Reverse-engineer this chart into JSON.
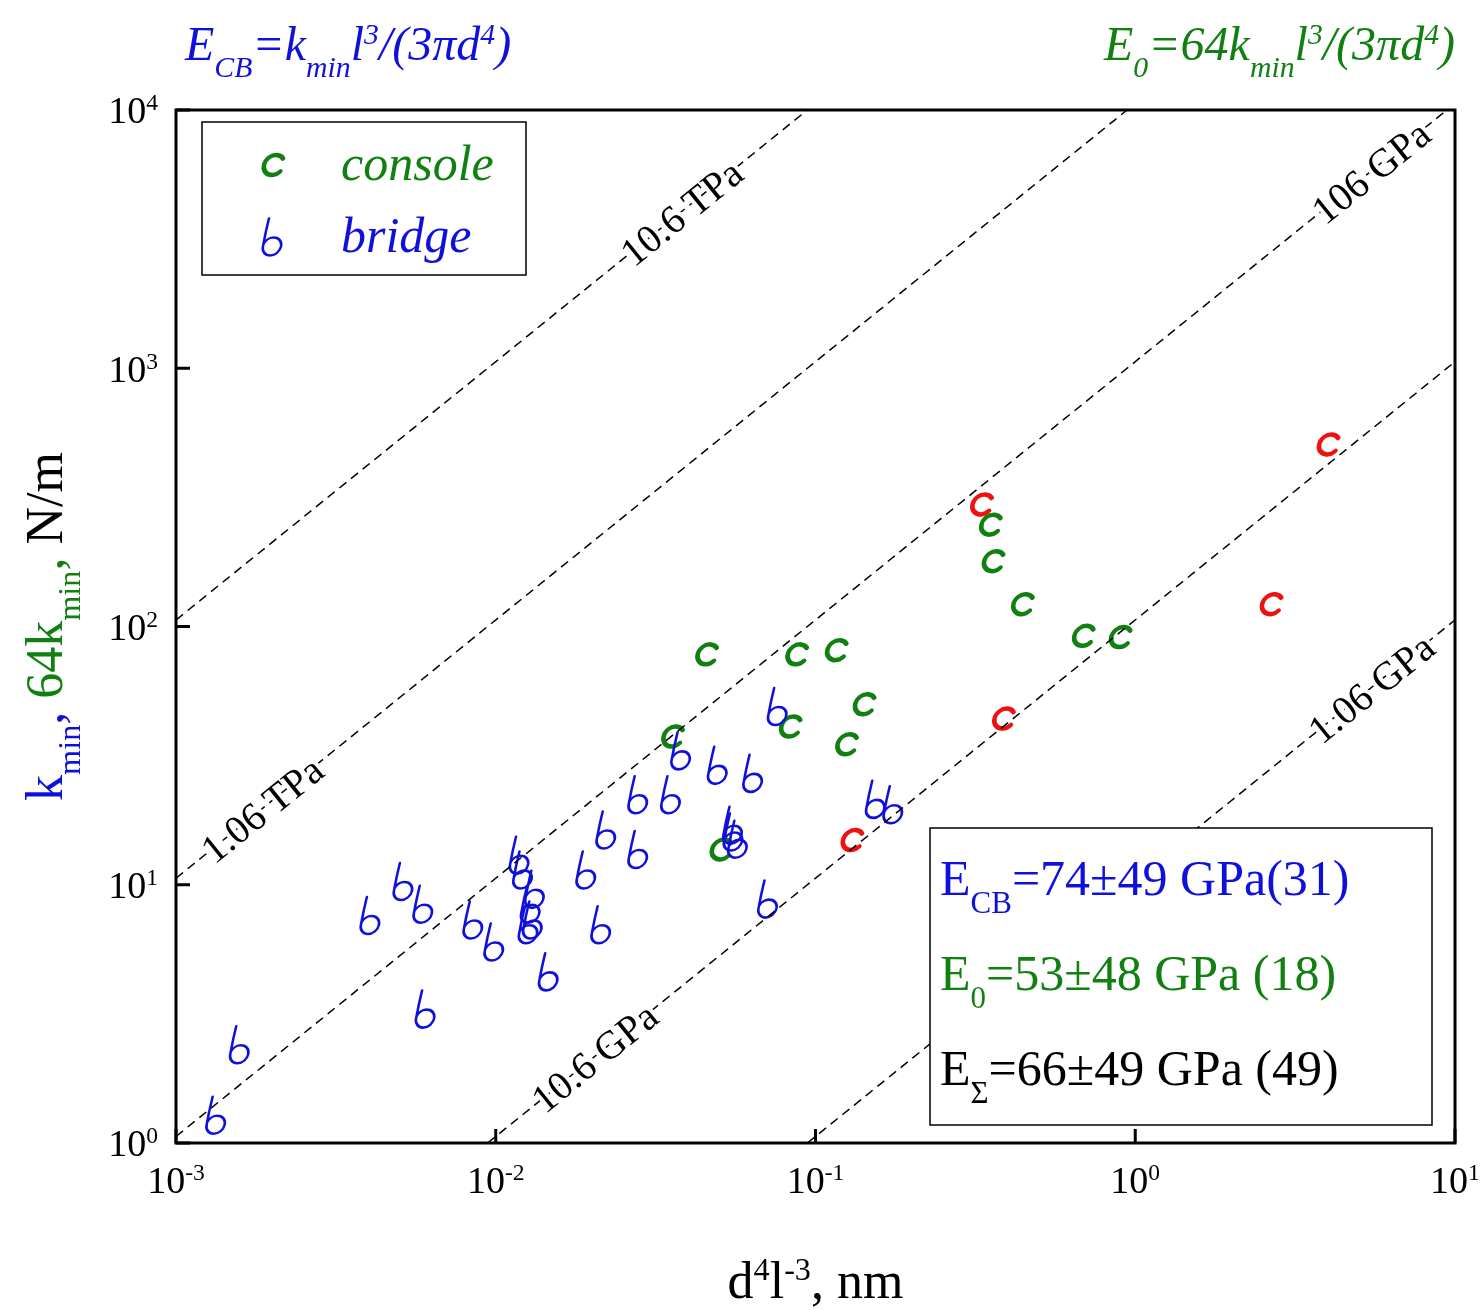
{
  "chart_data": {
    "type": "scatter",
    "xlabel": "d$^{4}$l$^{-3}$, nm",
    "ylabel": "k$_{min}$, 64k$_{min}$, N/m",
    "log": "xy",
    "xlim": [
      0.001,
      10
    ],
    "ylim": [
      1,
      10000
    ],
    "xticks": [
      {
        "value": 0.001,
        "label": "10$^{-3}$"
      },
      {
        "value": 0.01,
        "label": "10$^{-2}$"
      },
      {
        "value": 0.1,
        "label": "10$^{-1}$"
      },
      {
        "value": 1,
        "label": "10$^{0}$"
      },
      {
        "value": 10,
        "label": "10$^{1}$"
      }
    ],
    "yticks": [
      {
        "value": 1,
        "label": "10$^{0}$"
      },
      {
        "value": 10,
        "label": "10$^{1}$"
      },
      {
        "value": 100,
        "label": "10$^{2}$"
      },
      {
        "value": 1000,
        "label": "10$^{3}$"
      },
      {
        "value": 10000,
        "label": "10$^{4}$"
      }
    ],
    "grid": false,
    "legend": "top left",
    "annotations": [
      "E$_{CB}$=k$_{min}$l$^{3}$/(3πd$^{4}$)",
      "E$_{0}$=64k$_{min}$l$^{3}$/(3πd$^{4}$)",
      "E$_{CB}$=74±49 GPa(31)",
      "E$_{0}$=53±48 GPa  (18)",
      "E$_{Σ}$=66±49 GPa  (49)"
    ],
    "series": [
      {
        "name": "console",
        "color": "#118011",
        "x": [
          0.046,
          0.088,
          0.117,
          0.036,
          0.084,
          0.143,
          0.126,
          0.051,
          0.355,
          0.362,
          0.447,
          0.693,
          0.904
        ],
        "values": [
          78,
          78,
          81,
          37.5,
          41,
          50,
          35,
          13.7,
          248,
          179,
          122,
          92,
          91
        ]
      },
      {
        "name": "bridge",
        "color": "#1010dd",
        "x": [
          0.00135,
          0.0016,
          0.0061,
          0.0041,
          0.0052,
          0.006,
          0.0086,
          0.01,
          0.0148,
          0.012,
          0.0123,
          0.0134,
          0.013,
          0.0132,
          0.0128,
          0.0194,
          0.0216,
          0.0224,
          0.0282,
          0.0282,
          0.0357,
          0.0384,
          0.05,
          0.0645,
          0.077,
          0.0558,
          0.0578,
          0.156,
          0.177,
          0.0718,
          0.056
        ],
        "values": [
          1.28,
          2.4,
          3.3,
          7.6,
          10.3,
          8.4,
          7.3,
          6,
          4.6,
          13,
          11.4,
          9.6,
          8.4,
          7.3,
          7,
          11.4,
          7,
          16.3,
          13.7,
          22.3,
          22.3,
          33,
          29,
          27,
          49,
          17,
          15,
          21.4,
          20.4,
          8.8,
          16
        ]
      },
      {
        "color": "#ee1111",
        "x": [
          0.333,
          4.04,
          2.68,
          0.39,
          0.131
        ],
        "values": [
          297,
          507,
          122,
          44,
          14.9
        ]
      },
      {
        "name": "1.06 GPa",
        "type": "line",
        "line_style": "dashed",
        "color": "#000000",
        "x": [
          0.0943,
          10
        ],
        "values": [
          1,
          106
        ]
      },
      {
        "name": "10.6 GPa",
        "type": "line",
        "line_style": "dashed",
        "color": "#000000",
        "x": [
          0.00943,
          10
        ],
        "values": [
          1,
          1060
        ]
      },
      {
        "name": "106 GPa",
        "type": "line",
        "line_style": "dashed",
        "color": "#000000",
        "x": [
          0.001,
          9.43
        ],
        "values": [
          1.06,
          10000
        ]
      },
      {
        "name": "1.06 TPa",
        "type": "line",
        "line_style": "dashed",
        "color": "#000000",
        "x": [
          0.001,
          0.943
        ],
        "values": [
          10.6,
          10000
        ]
      },
      {
        "name": "10.6 TPa",
        "type": "line",
        "line_style": "dashed",
        "color": "#000000",
        "x": [
          0.001,
          0.0943
        ],
        "values": [
          106,
          10000
        ]
      }
    ]
  }
}
